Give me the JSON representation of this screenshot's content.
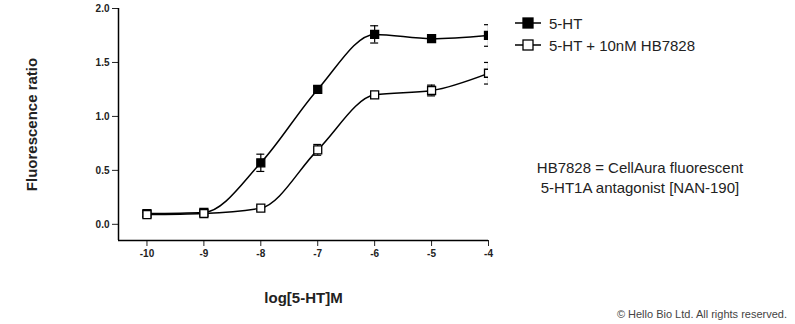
{
  "chart_data": {
    "type": "line",
    "x_label": "log[5-HT]M",
    "y_label": "Fluorescence ratio",
    "x": [
      -10,
      -9,
      -8,
      -7,
      -6,
      -5,
      -4
    ],
    "series": [
      {
        "name": "5-HT",
        "color": "#000000",
        "marker": "square",
        "values": [
          0.1,
          0.11,
          0.57,
          1.25,
          1.76,
          1.72,
          1.75
        ],
        "errors": [
          0.03,
          0.02,
          0.08,
          0.03,
          0.08,
          0.02,
          0.1
        ]
      },
      {
        "name": "5-HT + 10nM HB7828",
        "color": "#000000",
        "marker": "square-open",
        "values": [
          0.09,
          0.1,
          0.15,
          0.69,
          1.2,
          1.24,
          1.4
        ],
        "errors": [
          0.02,
          0.02,
          0.02,
          0.05,
          0.03,
          0.05,
          0.1
        ]
      }
    ],
    "xlim": [
      -10.5,
      -4
    ],
    "xticks": [
      -10,
      -9,
      -8,
      -7,
      -6,
      -5,
      -4
    ],
    "ylim": [
      -0.15,
      2.0
    ],
    "yticks": [
      {
        "value": 0,
        "label": "0.0"
      },
      {
        "value": 0.5,
        "label": "0.5"
      },
      {
        "value": 1,
        "label": "1.0"
      },
      {
        "value": 1.5,
        "label": "1.5"
      },
      {
        "value": 2,
        "label": "2.0"
      }
    ],
    "legend": "top-right",
    "annotations": [
      "HB7828 = CellAura fluorescent",
      "5-HT1A antagonist [NAN-190]",
      "© Hello Bio Ltd. All rights reserved."
    ]
  }
}
